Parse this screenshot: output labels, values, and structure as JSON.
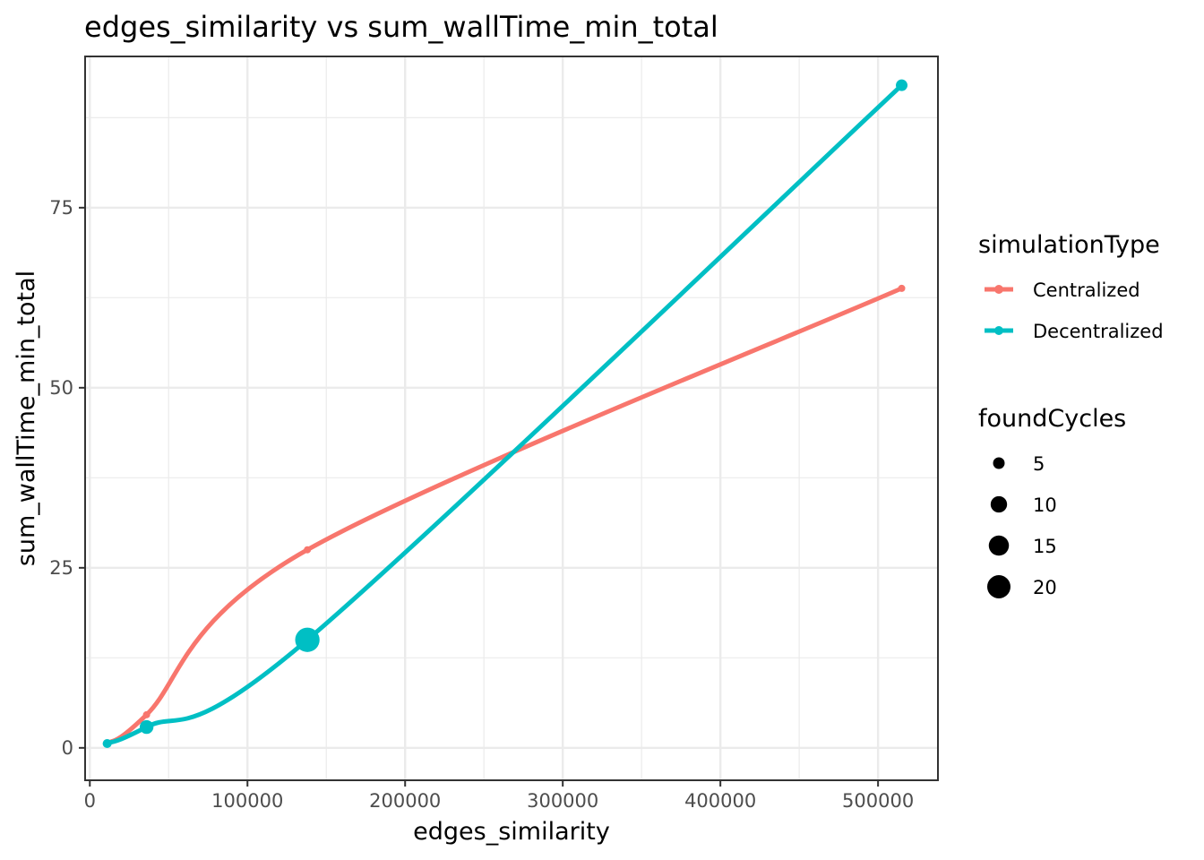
{
  "chart_data": {
    "type": "line",
    "title": "edges_similarity  vs  sum_wallTime_min_total",
    "xlabel": "edges_similarity",
    "ylabel": "sum_wallTime_min_total",
    "xlim": [
      -3000,
      538000
    ],
    "ylim": [
      -4.5,
      96
    ],
    "x_ticks": [
      0,
      100000,
      200000,
      300000,
      400000,
      500000
    ],
    "x_tick_labels": [
      "0",
      "100000",
      "200000",
      "300000",
      "400000",
      "500000"
    ],
    "y_ticks": [
      0,
      25,
      50,
      75
    ],
    "y_tick_labels": [
      "0",
      "25",
      "50",
      "75"
    ],
    "grid": true,
    "series": [
      {
        "name": "Centralized",
        "color": "#F8766D",
        "smooth": true,
        "points": [
          {
            "x": 11000,
            "y": 0.6,
            "foundCycles": 0
          },
          {
            "x": 36000,
            "y": 4.6,
            "foundCycles": 0
          },
          {
            "x": 138000,
            "y": 27.5,
            "foundCycles": 0
          },
          {
            "x": 515000,
            "y": 63.8,
            "foundCycles": 0
          }
        ]
      },
      {
        "name": "Decentralized",
        "color": "#00BFC4",
        "smooth": true,
        "points": [
          {
            "x": 11000,
            "y": 0.6,
            "foundCycles": 3
          },
          {
            "x": 36000,
            "y": 2.9,
            "foundCycles": 7
          },
          {
            "x": 138000,
            "y": 15.0,
            "foundCycles": 22
          },
          {
            "x": 515000,
            "y": 92.0,
            "foundCycles": 5
          }
        ]
      }
    ],
    "legend": {
      "placement": "right",
      "color_title": "simulationType",
      "color_items": [
        "Centralized",
        "Decentralized"
      ],
      "size_title": "foundCycles",
      "size_items": [
        {
          "label": "5",
          "value": 5
        },
        {
          "label": "10",
          "value": 10
        },
        {
          "label": "15",
          "value": 15
        },
        {
          "label": "20",
          "value": 20
        }
      ]
    }
  }
}
